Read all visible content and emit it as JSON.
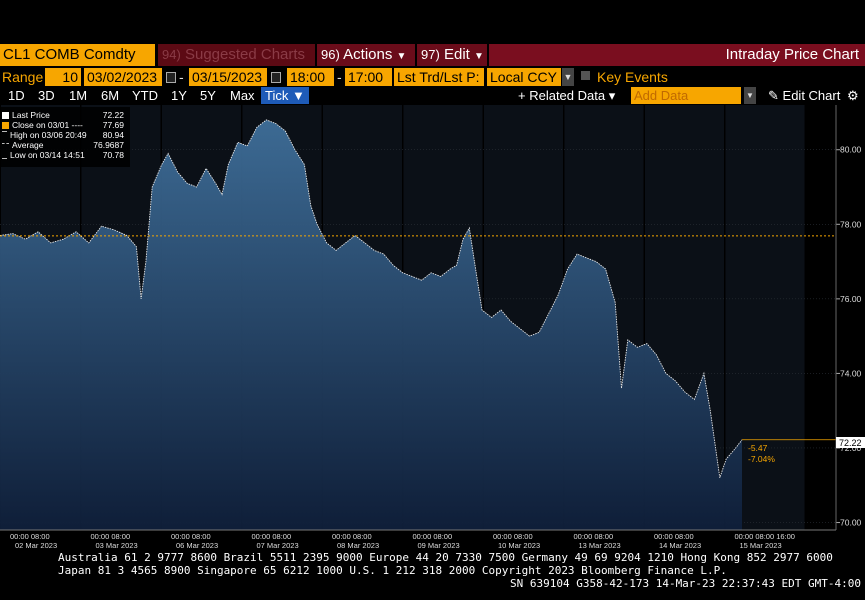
{
  "header": {
    "ticker": "CL1 COMB Comdty",
    "suggested_num": "94)",
    "suggested_label": "Suggested Charts",
    "actions_num": "96)",
    "actions_label": "Actions",
    "edit_num": "97)",
    "edit_label": "Edit",
    "title": "Intraday Price Chart"
  },
  "controls": {
    "range_label": "Range",
    "range_value": "10",
    "start_date": "03/02/2023",
    "dash1": "-",
    "end_date": "03/15/2023",
    "start_time": "18:00",
    "dash2": "-",
    "end_time": "17:00",
    "field_select": "Lst Trd/Lst P:",
    "currency_select": "Local CCY",
    "key_events_label": "Key Events"
  },
  "toolbar": {
    "periods": [
      "1D",
      "3D",
      "1M",
      "6M",
      "YTD",
      "1Y",
      "5Y",
      "Max"
    ],
    "tick_label": "Tick ▼",
    "related_data": "+ Related Data ▾",
    "add_data_placeholder": "Add Data",
    "edit_chart": "Edit Chart"
  },
  "legend": [
    {
      "label": "Last Price",
      "value": "72.22",
      "color": "#ffffff"
    },
    {
      "label": "Close on 03/01 ----",
      "value": "77.69",
      "color": "#f7a600"
    },
    {
      "label": "High on 03/06 20:49",
      "value": "80.94",
      "color": "#bbbbbb"
    },
    {
      "label": "Average",
      "value": "76.9687",
      "color": "#bbbbbb"
    },
    {
      "label": "Low on 03/14 14:51",
      "value": "70.78",
      "color": "#bbbbbb"
    }
  ],
  "chart_data": {
    "type": "line",
    "ylim": [
      69.8,
      81.2
    ],
    "yticks": [
      "70.00",
      "72.00",
      "74.00",
      "76.00",
      "78.00",
      "80.00"
    ],
    "last_price_label": "72.22",
    "close_reference": 77.69,
    "change_abs": "-5.47",
    "change_pct": "-7.04%",
    "days": [
      {
        "date": "02 Mar 2023",
        "times": "00:00  08:00"
      },
      {
        "date": "03 Mar 2023",
        "times": "00:00  08:00"
      },
      {
        "date": "06 Mar 2023",
        "times": "00:00  08:00"
      },
      {
        "date": "07 Mar 2023",
        "times": "00:00  08:00"
      },
      {
        "date": "08 Mar 2023",
        "times": "00:00  08:00"
      },
      {
        "date": "09 Mar 2023",
        "times": "00:00  08:00"
      },
      {
        "date": "10 Mar 2023",
        "times": "00:00  08:00"
      },
      {
        "date": "13 Mar 2023",
        "times": "00:00  08:00"
      },
      {
        "date": "14 Mar 2023",
        "times": "00:00  08:00"
      },
      {
        "date": "15 Mar 2023",
        "times": "00:00  08:00  16:00"
      }
    ],
    "series": [
      {
        "name": "Last Price",
        "values": [
          [
            0,
            77.7
          ],
          [
            0.4,
            77.75
          ],
          [
            0.8,
            77.6
          ],
          [
            1.2,
            77.8
          ],
          [
            1.6,
            77.5
          ],
          [
            2,
            77.6
          ],
          [
            2.4,
            77.8
          ],
          [
            2.8,
            77.5
          ],
          [
            3.2,
            77.95
          ],
          [
            3.6,
            77.85
          ],
          [
            4,
            77.7
          ],
          [
            4.3,
            77.4
          ],
          [
            4.45,
            76.0
          ],
          [
            4.6,
            77.0
          ],
          [
            4.8,
            79.0
          ],
          [
            5.1,
            79.6
          ],
          [
            5.3,
            79.9
          ],
          [
            5.6,
            79.4
          ],
          [
            5.9,
            79.1
          ],
          [
            6.2,
            79.0
          ],
          [
            6.5,
            79.5
          ],
          [
            6.8,
            79.1
          ],
          [
            7.0,
            78.8
          ],
          [
            7.2,
            79.6
          ],
          [
            7.5,
            80.2
          ],
          [
            7.8,
            80.1
          ],
          [
            8.1,
            80.6
          ],
          [
            8.4,
            80.8
          ],
          [
            8.7,
            80.7
          ],
          [
            9.0,
            80.5
          ],
          [
            9.3,
            80.0
          ],
          [
            9.6,
            79.6
          ],
          [
            9.8,
            78.5
          ],
          [
            10.0,
            78.0
          ],
          [
            10.3,
            77.5
          ],
          [
            10.6,
            77.3
          ],
          [
            10.9,
            77.5
          ],
          [
            11.2,
            77.7
          ],
          [
            11.5,
            77.5
          ],
          [
            11.8,
            77.3
          ],
          [
            12.1,
            77.2
          ],
          [
            12.4,
            76.9
          ],
          [
            12.7,
            76.7
          ],
          [
            13.0,
            76.6
          ],
          [
            13.3,
            76.5
          ],
          [
            13.6,
            76.7
          ],
          [
            13.9,
            76.6
          ],
          [
            14.2,
            76.8
          ],
          [
            14.4,
            76.9
          ],
          [
            14.6,
            77.6
          ],
          [
            14.8,
            77.9
          ],
          [
            15.0,
            76.8
          ],
          [
            15.2,
            75.7
          ],
          [
            15.5,
            75.5
          ],
          [
            15.8,
            75.7
          ],
          [
            16.1,
            75.4
          ],
          [
            16.4,
            75.2
          ],
          [
            16.7,
            75.0
          ],
          [
            17.0,
            75.1
          ],
          [
            17.3,
            75.6
          ],
          [
            17.6,
            76.1
          ],
          [
            17.9,
            76.8
          ],
          [
            18.2,
            77.2
          ],
          [
            18.5,
            77.1
          ],
          [
            18.8,
            77.0
          ],
          [
            19.1,
            76.8
          ],
          [
            19.4,
            75.9
          ],
          [
            19.6,
            73.6
          ],
          [
            19.8,
            74.9
          ],
          [
            20.1,
            74.7
          ],
          [
            20.4,
            74.8
          ],
          [
            20.7,
            74.5
          ],
          [
            21.0,
            74.0
          ],
          [
            21.3,
            73.8
          ],
          [
            21.6,
            73.5
          ],
          [
            21.9,
            73.3
          ],
          [
            22.2,
            74.0
          ],
          [
            22.4,
            73.0
          ],
          [
            22.7,
            71.2
          ],
          [
            22.9,
            71.7
          ],
          [
            23.2,
            72.0
          ],
          [
            23.4,
            72.22
          ]
        ]
      }
    ]
  },
  "footer": {
    "line1": "Australia 61 2 9777 8600 Brazil 5511 2395 9000 Europe 44 20 7330 7500 Germany 49 69 9204 1210 Hong Kong 852 2977 6000",
    "line2": "Japan 81 3 4565 8900     Singapore 65 6212 1000     U.S. 1 212 318 2000     Copyright 2023 Bloomberg Finance L.P.",
    "line3": "SN 639104 G358-42-173 14-Mar-23 22:37:43 EDT  GMT-4:00"
  },
  "colors": {
    "orange": "#f7a600",
    "maroon": "#6a0c1a",
    "area_top": "#3f6f9a",
    "area_bottom": "#0f1f3a",
    "session_bg": "#0c1118"
  }
}
